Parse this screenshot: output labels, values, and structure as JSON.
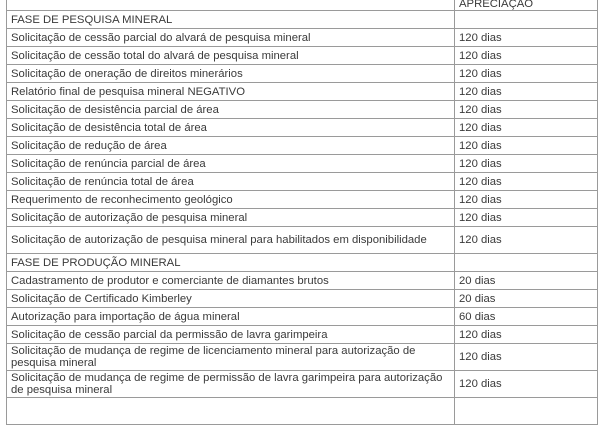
{
  "header": {
    "col1": "",
    "col2": "APRECIAÇÃO"
  },
  "rows": [
    {
      "type": "section",
      "label": "FASE DE PESQUISA MINERAL",
      "value": ""
    },
    {
      "label": "Solicitação de cessão parcial do alvará de pesquisa mineral",
      "value": "120 dias"
    },
    {
      "label": "Solicitação de cessão total do alvará de pesquisa mineral",
      "value": "120 dias"
    },
    {
      "label": "Solicitação de oneração de direitos minerários",
      "value": "120 dias"
    },
    {
      "label": "Relatório final de pesquisa mineral NEGATIVO",
      "value": "120 dias"
    },
    {
      "label": "Solicitação de desistência parcial de área",
      "value": "120 dias"
    },
    {
      "label": "Solicitação de desistência total de área",
      "value": "120 dias"
    },
    {
      "label": "Solicitação de redução de área",
      "value": "120 dias"
    },
    {
      "label": "Solicitação de renúncia parcial de área",
      "value": "120 dias"
    },
    {
      "label": "Solicitação de renúncia total de área",
      "value": "120 dias"
    },
    {
      "label": "Requerimento de reconhecimento geológico",
      "value": "120 dias"
    },
    {
      "label": "Solicitação de autorização de pesquisa mineral",
      "value": "120 dias"
    },
    {
      "label": "Solicitação de autorização de pesquisa mineral para habilitados em disponibilidade",
      "value": "120 dias",
      "two": true
    },
    {
      "type": "section",
      "label": "FASE DE PRODUÇÃO MINERAL",
      "value": ""
    },
    {
      "label": "Cadastramento de produtor e comerciante de diamantes brutos",
      "value": "20 dias"
    },
    {
      "label": "Solicitação de Certificado Kimberley",
      "value": "20 dias"
    },
    {
      "label": "Autorização para importação de água mineral",
      "value": "60 dias"
    },
    {
      "label": "Solicitação de cessão parcial da permissão de lavra garimpeira",
      "value": "120 dias"
    },
    {
      "label": "Solicitação de mudança de regime de licenciamento mineral para autorização de pesquisa mineral",
      "value": "120 dias",
      "two": true
    },
    {
      "label": "Solicitação de mudança de regime de permissão de lavra garimpeira para autorização de pesquisa mineral",
      "value": "120 dias",
      "two": true
    }
  ]
}
